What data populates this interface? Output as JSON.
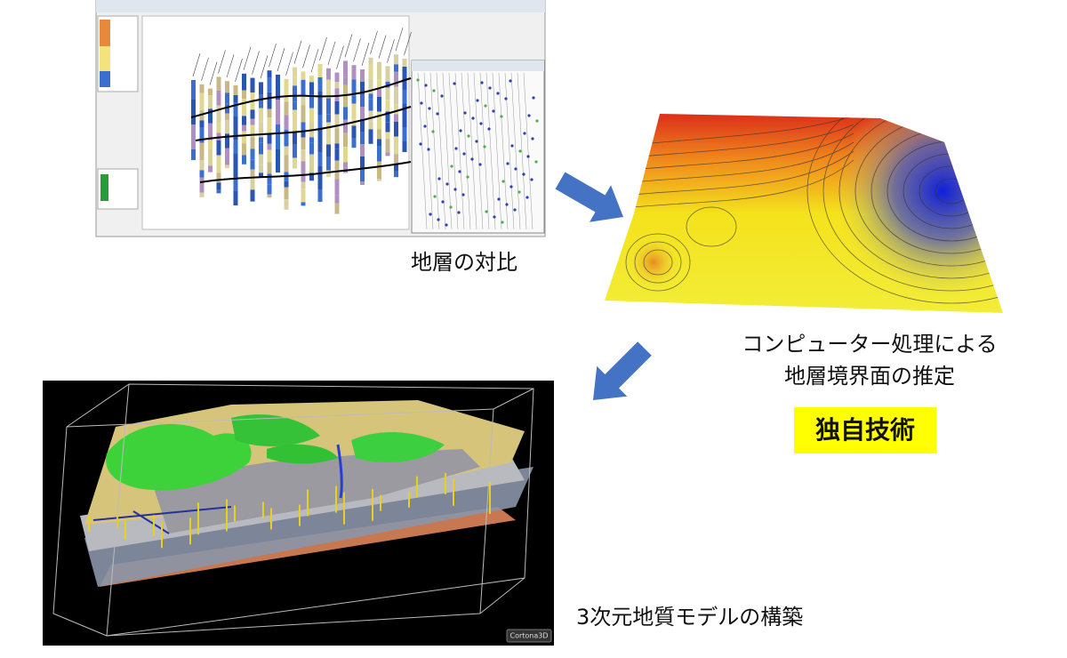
{
  "labels": {
    "correlation": "地層の対比",
    "estimation_line1": "コンピューター処理による",
    "estimation_line2": "地層境界面の推定",
    "original_technology": "独自技術",
    "model_building": "3次元地質モデルの構築",
    "viewer_logo": "Cortona3D"
  }
}
